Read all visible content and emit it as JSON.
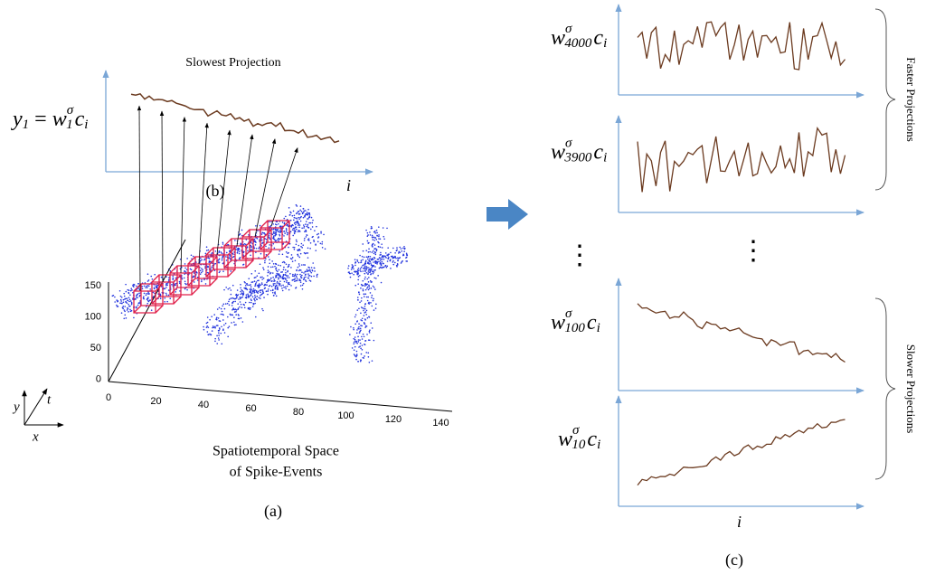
{
  "left": {
    "title": "Slowest Projection",
    "formula": {
      "lhs": "y",
      "lhs_sub": "1",
      "eq": "=",
      "base": "w",
      "sup": "σ",
      "sub": "1",
      "tail": "c",
      "tail_sub": "i"
    },
    "label_b": "(b)",
    "axis_i": "i",
    "yticks": [
      "150",
      "100",
      "50",
      "0"
    ],
    "xticks": [
      "0",
      "20",
      "40",
      "60",
      "80",
      "100",
      "120",
      "140"
    ],
    "caption": [
      "Spatiotemporal Space",
      "of Spike-Events"
    ],
    "label_a": "(a)",
    "frame": {
      "y": "y",
      "t": "t",
      "x": "x"
    }
  },
  "right": {
    "panels": [
      {
        "base": "w",
        "sup": "σ",
        "sub": "4000",
        "tail": "c",
        "tail_sub": "i"
      },
      {
        "base": "w",
        "sup": "σ",
        "sub": "3900",
        "tail": "c",
        "tail_sub": "i"
      },
      {
        "base": "w",
        "sup": "σ",
        "sub": "100",
        "tail": "c",
        "tail_sub": "i"
      },
      {
        "base": "w",
        "sup": "σ",
        "sub": "10",
        "tail": "c",
        "tail_sub": "i"
      }
    ],
    "faster": "Faster Projections",
    "slower": "Slower Projections",
    "axis_i": "i",
    "label_c": "(c)"
  }
}
